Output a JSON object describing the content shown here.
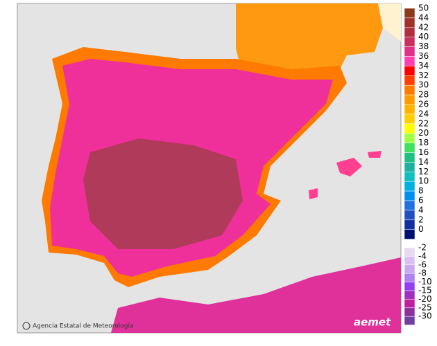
{
  "legend": {
    "upper": [
      {
        "label": "50",
        "color": "#8b3a1a"
      },
      {
        "label": "44",
        "color": "#a0302a"
      },
      {
        "label": "42",
        "color": "#b03040"
      },
      {
        "label": "40",
        "color": "#c83060"
      },
      {
        "label": "38",
        "color": "#e0308a"
      },
      {
        "label": "36",
        "color": "#ff40b0"
      },
      {
        "label": "34",
        "color": "#ff0000"
      },
      {
        "label": "32",
        "color": "#ff4000"
      },
      {
        "label": "30",
        "color": "#ff7a00"
      },
      {
        "label": "28",
        "color": "#ff9a00"
      },
      {
        "label": "26",
        "color": "#ffb400"
      },
      {
        "label": "24",
        "color": "#ffd000"
      },
      {
        "label": "22",
        "color": "#ffff00"
      },
      {
        "label": "20",
        "color": "#a0ff40"
      },
      {
        "label": "18",
        "color": "#40e060"
      },
      {
        "label": "16",
        "color": "#20c080"
      },
      {
        "label": "14",
        "color": "#20b0a0"
      },
      {
        "label": "12",
        "color": "#10c0c0"
      },
      {
        "label": "10",
        "color": "#00b0e0"
      },
      {
        "label": "8",
        "color": "#0090f0"
      },
      {
        "label": "6",
        "color": "#2070e0"
      },
      {
        "label": "4",
        "color": "#2050c0"
      },
      {
        "label": "2",
        "color": "#1030a0"
      },
      {
        "label": "0",
        "color": "#001070"
      }
    ],
    "lower": [
      {
        "label": "-2",
        "color": "#e8d8f0"
      },
      {
        "label": "-4",
        "color": "#d8c0f0"
      },
      {
        "label": "-6",
        "color": "#c8a8f0"
      },
      {
        "label": "-8",
        "color": "#b080f0"
      },
      {
        "label": "-10",
        "color": "#9040f0"
      },
      {
        "label": "-15",
        "color": "#a030c0"
      },
      {
        "label": "-20",
        "color": "#c020a0"
      },
      {
        "label": "-25",
        "color": "#9030a0"
      },
      {
        "label": "-30",
        "color": "#7040a0"
      }
    ]
  },
  "attribution": "Agencia Estatal de Meteorología",
  "logo": "aemet"
}
